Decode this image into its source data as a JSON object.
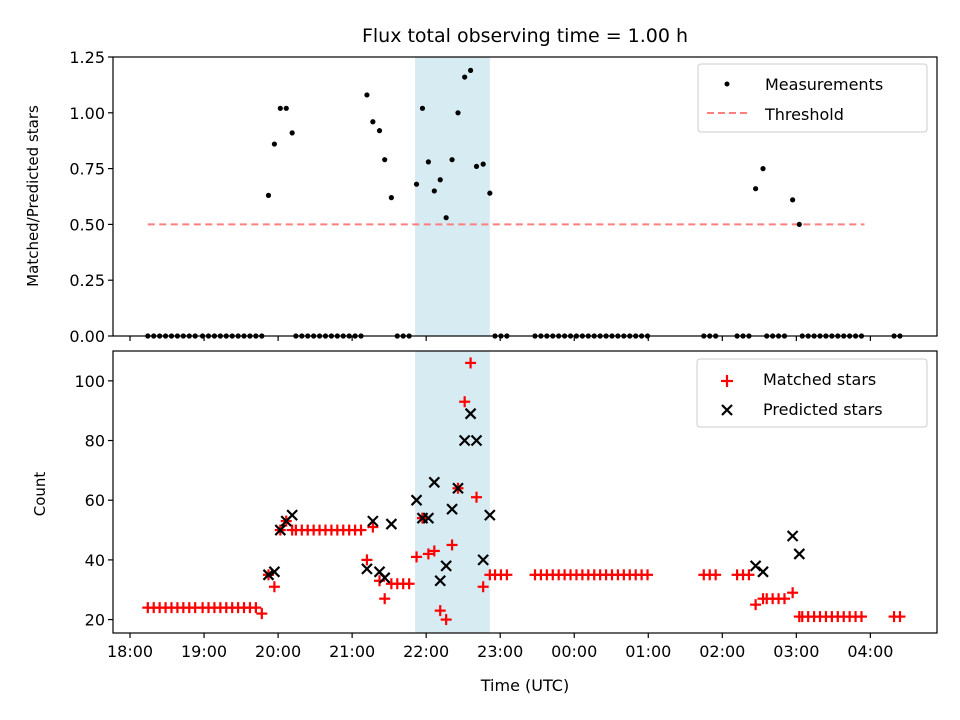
{
  "chart_data": [
    {
      "type": "scatter",
      "panel": "top",
      "title": "Flux total observing time = 1.00 h",
      "xlabel": "",
      "ylabel": "Matched/Predicted stars",
      "ylim": [
        0,
        1.25
      ],
      "yticks": [
        0,
        0.25,
        0.5,
        0.75,
        1.0,
        1.25
      ],
      "ytick_labels": [
        "0.00",
        "0.25",
        "0.50",
        "0.75",
        "1.00",
        "1.25"
      ],
      "x_units": "hours since 18:00 UTC",
      "xlim": [
        -0.23,
        10.9
      ],
      "highlight_span": [
        3.85,
        4.86
      ],
      "highlight_color": "#add8e6",
      "legend": {
        "placement": "upper-right",
        "entries": [
          {
            "label": "Measurements",
            "marker": "dot",
            "color": "#000000"
          },
          {
            "label": "Threshold",
            "marker": "dashed-line",
            "color": "#ff7f7f"
          }
        ]
      },
      "threshold": {
        "value": 0.5,
        "x_range": [
          0.24,
          9.92
        ],
        "color": "#ff7f7f"
      },
      "series": [
        {
          "name": "Measurements",
          "color": "#000000",
          "points": [
            [
              0.24,
              0
            ],
            [
              0.32,
              0
            ],
            [
              0.4,
              0
            ],
            [
              0.48,
              0
            ],
            [
              0.56,
              0
            ],
            [
              0.64,
              0
            ],
            [
              0.72,
              0
            ],
            [
              0.8,
              0
            ],
            [
              0.88,
              0
            ],
            [
              0.98,
              0
            ],
            [
              1.06,
              0
            ],
            [
              1.14,
              0
            ],
            [
              1.22,
              0
            ],
            [
              1.3,
              0
            ],
            [
              1.38,
              0
            ],
            [
              1.46,
              0
            ],
            [
              1.54,
              0
            ],
            [
              1.62,
              0
            ],
            [
              1.7,
              0
            ],
            [
              1.78,
              0
            ],
            [
              1.87,
              0.63
            ],
            [
              1.95,
              0.86
            ],
            [
              2.03,
              1.02
            ],
            [
              2.11,
              1.02
            ],
            [
              2.19,
              0.91
            ],
            [
              2.24,
              0
            ],
            [
              2.32,
              0
            ],
            [
              2.4,
              0
            ],
            [
              2.48,
              0
            ],
            [
              2.56,
              0
            ],
            [
              2.64,
              0
            ],
            [
              2.72,
              0
            ],
            [
              2.8,
              0
            ],
            [
              2.88,
              0
            ],
            [
              2.96,
              0
            ],
            [
              3.04,
              0
            ],
            [
              3.12,
              0
            ],
            [
              3.2,
              1.08
            ],
            [
              3.28,
              0.96
            ],
            [
              3.37,
              0.92
            ],
            [
              3.44,
              0.79
            ],
            [
              3.53,
              0.62
            ],
            [
              3.61,
              0
            ],
            [
              3.69,
              0
            ],
            [
              3.77,
              0
            ],
            [
              3.87,
              0.68
            ],
            [
              3.95,
              1.02
            ],
            [
              4.03,
              0.78
            ],
            [
              4.11,
              0.65
            ],
            [
              4.19,
              0.7
            ],
            [
              4.27,
              0.53
            ],
            [
              4.35,
              0.79
            ],
            [
              4.43,
              1.0
            ],
            [
              4.52,
              1.16
            ],
            [
              4.6,
              1.19
            ],
            [
              4.68,
              0.76
            ],
            [
              4.77,
              0.77
            ],
            [
              4.86,
              0.64
            ],
            [
              4.93,
              0
            ],
            [
              5.01,
              0
            ],
            [
              5.09,
              0
            ],
            [
              5.47,
              0
            ],
            [
              5.55,
              0
            ],
            [
              5.63,
              0
            ],
            [
              5.71,
              0
            ],
            [
              5.79,
              0
            ],
            [
              5.87,
              0
            ],
            [
              5.95,
              0
            ],
            [
              6.03,
              0
            ],
            [
              6.11,
              0
            ],
            [
              6.19,
              0
            ],
            [
              6.27,
              0
            ],
            [
              6.35,
              0
            ],
            [
              6.43,
              0
            ],
            [
              6.51,
              0
            ],
            [
              6.59,
              0
            ],
            [
              6.67,
              0
            ],
            [
              6.75,
              0
            ],
            [
              6.83,
              0
            ],
            [
              6.91,
              0
            ],
            [
              6.99,
              0
            ],
            [
              7.75,
              0
            ],
            [
              7.83,
              0
            ],
            [
              7.91,
              0
            ],
            [
              8.2,
              0
            ],
            [
              8.28,
              0
            ],
            [
              8.36,
              0
            ],
            [
              8.45,
              0.66
            ],
            [
              8.55,
              0.75
            ],
            [
              8.6,
              0
            ],
            [
              8.68,
              0
            ],
            [
              8.76,
              0
            ],
            [
              8.84,
              0
            ],
            [
              8.95,
              0.61
            ],
            [
              9.04,
              0.5
            ],
            [
              9.08,
              0
            ],
            [
              9.16,
              0
            ],
            [
              9.24,
              0
            ],
            [
              9.32,
              0
            ],
            [
              9.4,
              0
            ],
            [
              9.48,
              0
            ],
            [
              9.56,
              0
            ],
            [
              9.64,
              0
            ],
            [
              9.72,
              0
            ],
            [
              9.8,
              0
            ],
            [
              9.88,
              0
            ],
            [
              10.32,
              0
            ],
            [
              10.4,
              0
            ]
          ]
        }
      ]
    },
    {
      "type": "scatter",
      "panel": "bottom",
      "xlabel": "Time (UTC)",
      "ylabel": "Count",
      "ylim": [
        15.5,
        110
      ],
      "yticks": [
        20,
        40,
        60,
        80,
        100
      ],
      "ytick_labels": [
        "20",
        "40",
        "60",
        "80",
        "100"
      ],
      "x_units": "hours since 18:00 UTC",
      "xlim": [
        -0.23,
        10.9
      ],
      "xticks": [
        0,
        1,
        2,
        3,
        4,
        5,
        6,
        7,
        8,
        9,
        10
      ],
      "xtick_labels": [
        "18:00",
        "19:00",
        "20:00",
        "21:00",
        "22:00",
        "23:00",
        "00:00",
        "01:00",
        "02:00",
        "03:00",
        "04:00"
      ],
      "highlight_span": [
        3.85,
        4.86
      ],
      "highlight_color": "#add8e6",
      "legend": {
        "placement": "upper-right",
        "entries": [
          {
            "label": "Matched stars",
            "marker": "plus",
            "color": "#ff0000"
          },
          {
            "label": "Predicted stars",
            "marker": "x",
            "color": "#000000"
          }
        ]
      },
      "series": [
        {
          "name": "Matched stars",
          "marker": "plus",
          "color": "#ff0000",
          "points": [
            [
              0.24,
              24
            ],
            [
              0.32,
              24
            ],
            [
              0.4,
              24
            ],
            [
              0.48,
              24
            ],
            [
              0.56,
              24
            ],
            [
              0.64,
              24
            ],
            [
              0.72,
              24
            ],
            [
              0.8,
              24
            ],
            [
              0.88,
              24
            ],
            [
              0.98,
              24
            ],
            [
              1.06,
              24
            ],
            [
              1.14,
              24
            ],
            [
              1.22,
              24
            ],
            [
              1.3,
              24
            ],
            [
              1.38,
              24
            ],
            [
              1.46,
              24
            ],
            [
              1.54,
              24
            ],
            [
              1.62,
              24
            ],
            [
              1.7,
              24
            ],
            [
              1.78,
              22
            ],
            [
              1.87,
              35
            ],
            [
              1.95,
              31
            ],
            [
              2.03,
              50
            ],
            [
              2.11,
              53
            ],
            [
              2.19,
              50
            ],
            [
              2.24,
              50
            ],
            [
              2.32,
              50
            ],
            [
              2.4,
              50
            ],
            [
              2.48,
              50
            ],
            [
              2.56,
              50
            ],
            [
              2.64,
              50
            ],
            [
              2.72,
              50
            ],
            [
              2.8,
              50
            ],
            [
              2.88,
              50
            ],
            [
              2.96,
              50
            ],
            [
              3.04,
              50
            ],
            [
              3.12,
              50
            ],
            [
              3.2,
              40
            ],
            [
              3.28,
              51
            ],
            [
              3.37,
              33
            ],
            [
              3.44,
              27
            ],
            [
              3.53,
              32
            ],
            [
              3.61,
              32
            ],
            [
              3.69,
              32
            ],
            [
              3.77,
              32
            ],
            [
              3.87,
              41
            ],
            [
              3.95,
              54
            ],
            [
              4.03,
              42
            ],
            [
              4.11,
              43
            ],
            [
              4.19,
              23
            ],
            [
              4.27,
              20
            ],
            [
              4.35,
              45
            ],
            [
              4.43,
              64
            ],
            [
              4.52,
              93
            ],
            [
              4.6,
              106
            ],
            [
              4.68,
              61
            ],
            [
              4.77,
              31
            ],
            [
              4.86,
              35
            ],
            [
              4.93,
              35
            ],
            [
              5.01,
              35
            ],
            [
              5.09,
              35
            ],
            [
              5.47,
              35
            ],
            [
              5.55,
              35
            ],
            [
              5.63,
              35
            ],
            [
              5.71,
              35
            ],
            [
              5.79,
              35
            ],
            [
              5.87,
              35
            ],
            [
              5.95,
              35
            ],
            [
              6.03,
              35
            ],
            [
              6.11,
              35
            ],
            [
              6.19,
              35
            ],
            [
              6.27,
              35
            ],
            [
              6.35,
              35
            ],
            [
              6.43,
              35
            ],
            [
              6.51,
              35
            ],
            [
              6.59,
              35
            ],
            [
              6.67,
              35
            ],
            [
              6.75,
              35
            ],
            [
              6.83,
              35
            ],
            [
              6.91,
              35
            ],
            [
              6.99,
              35
            ],
            [
              7.75,
              35
            ],
            [
              7.83,
              35
            ],
            [
              7.91,
              35
            ],
            [
              8.2,
              35
            ],
            [
              8.28,
              35
            ],
            [
              8.36,
              35
            ],
            [
              8.45,
              25
            ],
            [
              8.55,
              27
            ],
            [
              8.6,
              27
            ],
            [
              8.68,
              27
            ],
            [
              8.76,
              27
            ],
            [
              8.84,
              27
            ],
            [
              8.95,
              29
            ],
            [
              9.04,
              21
            ],
            [
              9.08,
              21
            ],
            [
              9.16,
              21
            ],
            [
              9.24,
              21
            ],
            [
              9.32,
              21
            ],
            [
              9.4,
              21
            ],
            [
              9.48,
              21
            ],
            [
              9.56,
              21
            ],
            [
              9.64,
              21
            ],
            [
              9.72,
              21
            ],
            [
              9.8,
              21
            ],
            [
              9.88,
              21
            ],
            [
              10.32,
              21
            ],
            [
              10.4,
              21
            ]
          ]
        },
        {
          "name": "Predicted stars",
          "marker": "x",
          "color": "#000000",
          "points": [
            [
              1.87,
              35
            ],
            [
              1.95,
              36
            ],
            [
              2.03,
              50
            ],
            [
              2.11,
              53
            ],
            [
              2.19,
              55
            ],
            [
              3.2,
              37
            ],
            [
              3.28,
              53
            ],
            [
              3.37,
              36
            ],
            [
              3.44,
              34
            ],
            [
              3.53,
              52
            ],
            [
              3.87,
              60
            ],
            [
              3.95,
              54
            ],
            [
              4.03,
              54
            ],
            [
              4.11,
              66
            ],
            [
              4.19,
              33
            ],
            [
              4.27,
              38
            ],
            [
              4.35,
              57
            ],
            [
              4.43,
              64
            ],
            [
              4.52,
              80
            ],
            [
              4.6,
              89
            ],
            [
              4.68,
              80
            ],
            [
              4.77,
              40
            ],
            [
              4.86,
              55
            ],
            [
              8.45,
              38
            ],
            [
              8.55,
              36
            ],
            [
              8.95,
              48
            ],
            [
              9.04,
              42
            ]
          ]
        }
      ]
    }
  ]
}
